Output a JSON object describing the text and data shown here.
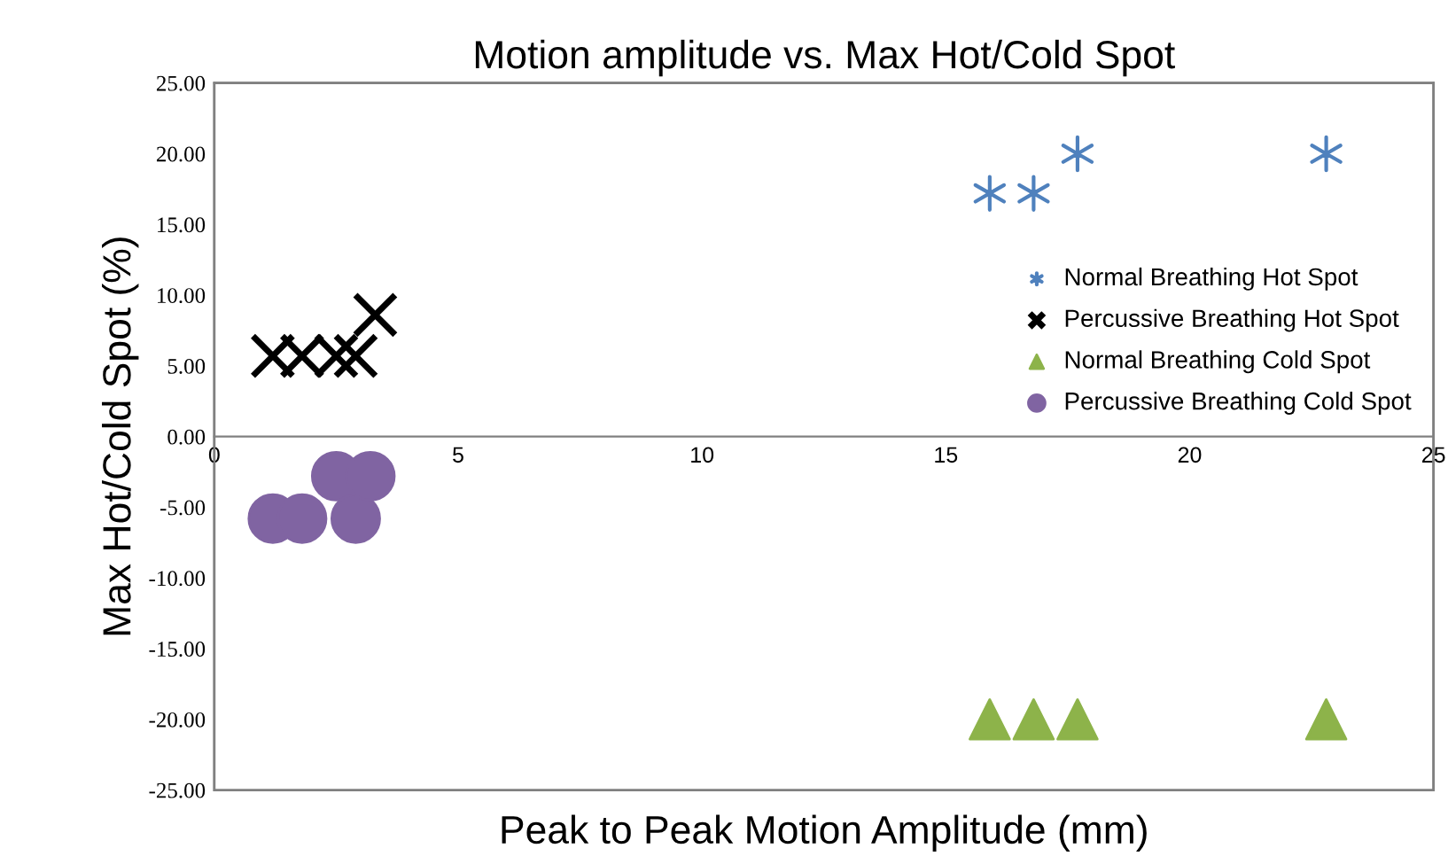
{
  "chart_data": {
    "type": "scatter",
    "title": "Motion amplitude vs. Max Hot/Cold Spot",
    "xlabel": "Peak to Peak Motion Amplitude (mm)",
    "ylabel": "Max Hot/Cold Spot (%)",
    "series": [
      {
        "name": "Normal Breathing Hot Spot",
        "color": "#4f81bd",
        "x": [
          15.9,
          16.8,
          17.7,
          22.8
        ],
        "values": [
          17.2,
          17.2,
          20.0,
          20.0
        ]
      },
      {
        "name": "Percussive Breathing Hot Spot",
        "color": "#000000",
        "marker": "cross",
        "x": [
          1.2,
          1.8,
          2.5,
          2.9,
          3.3
        ],
        "values": [
          5.7,
          5.7,
          5.7,
          5.7,
          8.6
        ]
      },
      {
        "name": "Normal Breathing Cold Spot",
        "color": "#8db34a",
        "marker": "triangle",
        "x": [
          15.9,
          16.8,
          17.7,
          22.8
        ],
        "values": [
          -20.0,
          -20.0,
          -20.0,
          -20.0
        ]
      },
      {
        "name": "Percussive Breathing Cold Spot",
        "color": "#8064a2",
        "marker": "circle",
        "x": [
          1.2,
          1.8,
          2.5,
          2.9,
          3.2
        ],
        "values": [
          -5.8,
          -5.8,
          -2.8,
          -5.8,
          -2.8
        ]
      }
    ],
    "xlim": [
      0,
      25
    ],
    "xticks": [
      0,
      5,
      10,
      15,
      20,
      25
    ],
    "ylim": [
      -25,
      25
    ],
    "yticks": [
      {
        "value": -25,
        "label": "-25.00"
      },
      {
        "value": -20,
        "label": "-20.00"
      },
      {
        "value": -15,
        "label": "-15.00"
      },
      {
        "value": -10,
        "label": "-10.00"
      },
      {
        "value": -5,
        "label": "-5.00"
      },
      {
        "value": 0,
        "label": "0.00"
      },
      {
        "value": 5,
        "label": "5.00"
      },
      {
        "value": 10,
        "label": "10.00"
      },
      {
        "value": 15,
        "label": "15.00"
      },
      {
        "value": 20,
        "label": "20.00"
      },
      {
        "value": 25,
        "label": "25.00"
      }
    ],
    "grid": false,
    "legend": "right"
  }
}
